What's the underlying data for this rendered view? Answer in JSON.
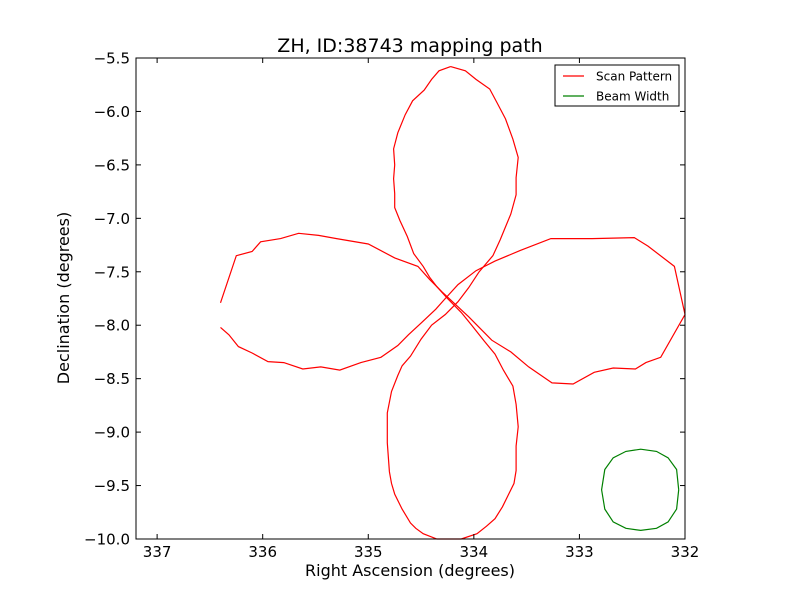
{
  "chart_data": {
    "type": "line",
    "title": "ZH, ID:38743 mapping path",
    "xlabel": "Right Ascension (degrees)",
    "ylabel": "Declination (degrees)",
    "xlim": [
      337.2,
      332.0
    ],
    "ylim": [
      -10.0,
      -5.5
    ],
    "x_ticks": [
      337,
      336,
      335,
      334,
      333,
      332
    ],
    "y_ticks": [
      -10.0,
      -9.5,
      -9.0,
      -8.5,
      -8.0,
      -7.5,
      -7.0,
      -6.5,
      -6.0,
      -5.5
    ],
    "x_tick_labels": [
      "337",
      "336",
      "335",
      "334",
      "333",
      "332"
    ],
    "y_tick_labels": [
      "−10.0",
      "−9.5",
      "−9.0",
      "−8.5",
      "−8.0",
      "−7.5",
      "−7.0",
      "−6.5",
      "−6.0",
      "−5.5"
    ],
    "grid": false,
    "legend_position": "top-right",
    "series": [
      {
        "name": "Scan Pattern",
        "color": "#ff0000",
        "points": [
          [
            336.4,
            -7.79
          ],
          [
            336.25,
            -7.35
          ],
          [
            336.1,
            -7.31
          ],
          [
            336.02,
            -7.22
          ],
          [
            335.83,
            -7.19
          ],
          [
            335.66,
            -7.14
          ],
          [
            335.47,
            -7.16
          ],
          [
            335.3,
            -7.19
          ],
          [
            335.0,
            -7.24
          ],
          [
            334.75,
            -7.37
          ],
          [
            334.53,
            -7.45
          ],
          [
            334.42,
            -7.57
          ],
          [
            334.3,
            -7.69
          ],
          [
            334.18,
            -7.8
          ],
          [
            334.05,
            -7.92
          ],
          [
            333.96,
            -8.01
          ],
          [
            333.83,
            -8.14
          ],
          [
            333.65,
            -8.25
          ],
          [
            333.48,
            -8.39
          ],
          [
            333.26,
            -8.54
          ],
          [
            333.06,
            -8.55
          ],
          [
            332.86,
            -8.44
          ],
          [
            332.68,
            -8.4
          ],
          [
            332.47,
            -8.41
          ],
          [
            332.37,
            -8.35
          ],
          [
            332.23,
            -8.3
          ],
          [
            332.0,
            -7.9
          ],
          [
            332.1,
            -7.45
          ],
          [
            332.35,
            -7.26
          ],
          [
            332.48,
            -7.18
          ],
          [
            332.88,
            -7.19
          ],
          [
            333.27,
            -7.19
          ],
          [
            333.56,
            -7.3
          ],
          [
            333.8,
            -7.4
          ],
          [
            333.98,
            -7.49
          ],
          [
            334.15,
            -7.62
          ],
          [
            334.27,
            -7.75
          ],
          [
            334.36,
            -7.85
          ],
          [
            334.5,
            -7.98
          ],
          [
            334.62,
            -8.09
          ],
          [
            334.72,
            -8.19
          ],
          [
            334.88,
            -8.3
          ],
          [
            335.07,
            -8.35
          ],
          [
            335.27,
            -8.42
          ],
          [
            335.45,
            -8.39
          ],
          [
            335.62,
            -8.41
          ],
          [
            335.8,
            -8.35
          ],
          [
            335.95,
            -8.34
          ],
          [
            336.1,
            -8.26
          ],
          [
            336.23,
            -8.2
          ],
          [
            336.32,
            -8.09
          ],
          [
            336.4,
            -8.02
          ]
        ]
      },
      {
        "name": "",
        "color": "#ff0000",
        "points": [
          [
            334.22,
            -5.58
          ],
          [
            334.08,
            -5.62
          ],
          [
            333.98,
            -5.7
          ],
          [
            333.85,
            -5.79
          ],
          [
            333.78,
            -5.92
          ],
          [
            333.7,
            -6.07
          ],
          [
            333.63,
            -6.26
          ],
          [
            333.58,
            -6.43
          ],
          [
            333.6,
            -6.62
          ],
          [
            333.6,
            -6.78
          ],
          [
            333.65,
            -6.96
          ],
          [
            333.7,
            -7.08
          ],
          [
            333.75,
            -7.2
          ],
          [
            333.82,
            -7.35
          ],
          [
            333.95,
            -7.5
          ],
          [
            334.05,
            -7.65
          ],
          [
            334.15,
            -7.78
          ],
          [
            334.27,
            -7.9
          ],
          [
            334.4,
            -8.0
          ],
          [
            334.5,
            -8.13
          ],
          [
            334.6,
            -8.29
          ],
          [
            334.68,
            -8.38
          ],
          [
            334.72,
            -8.47
          ],
          [
            334.78,
            -8.62
          ],
          [
            334.82,
            -8.82
          ],
          [
            334.82,
            -9.1
          ],
          [
            334.8,
            -9.37
          ],
          [
            334.78,
            -9.48
          ],
          [
            334.75,
            -9.58
          ],
          [
            334.68,
            -9.72
          ],
          [
            334.6,
            -9.85
          ],
          [
            334.55,
            -9.9
          ],
          [
            334.48,
            -9.95
          ],
          [
            334.35,
            -10.0
          ],
          [
            334.12,
            -10.0
          ],
          [
            333.97,
            -9.95
          ],
          [
            333.88,
            -9.88
          ],
          [
            333.8,
            -9.81
          ],
          [
            333.73,
            -9.7
          ],
          [
            333.67,
            -9.58
          ],
          [
            333.62,
            -9.48
          ],
          [
            333.6,
            -9.36
          ],
          [
            333.6,
            -9.13
          ],
          [
            333.58,
            -8.95
          ],
          [
            333.6,
            -8.74
          ],
          [
            333.63,
            -8.57
          ],
          [
            333.72,
            -8.42
          ],
          [
            333.8,
            -8.27
          ],
          [
            333.9,
            -8.15
          ],
          [
            334.02,
            -8.0
          ],
          [
            334.12,
            -7.88
          ],
          [
            334.25,
            -7.75
          ],
          [
            334.35,
            -7.64
          ],
          [
            334.42,
            -7.55
          ],
          [
            334.48,
            -7.45
          ],
          [
            334.57,
            -7.33
          ],
          [
            334.63,
            -7.17
          ],
          [
            334.7,
            -7.02
          ],
          [
            334.75,
            -6.9
          ],
          [
            334.75,
            -6.77
          ],
          [
            334.76,
            -6.63
          ],
          [
            334.75,
            -6.5
          ],
          [
            334.76,
            -6.35
          ],
          [
            334.72,
            -6.2
          ],
          [
            334.65,
            -6.03
          ],
          [
            334.58,
            -5.9
          ],
          [
            334.47,
            -5.8
          ],
          [
            334.4,
            -5.7
          ],
          [
            334.33,
            -5.62
          ],
          [
            334.22,
            -5.58
          ]
        ]
      },
      {
        "name": "Beam Width",
        "color": "#008000",
        "points": [
          [
            332.06,
            -9.54
          ],
          [
            332.08,
            -9.35
          ],
          [
            332.16,
            -9.24
          ],
          [
            332.27,
            -9.18
          ],
          [
            332.42,
            -9.16
          ],
          [
            332.56,
            -9.18
          ],
          [
            332.68,
            -9.24
          ],
          [
            332.76,
            -9.35
          ],
          [
            332.79,
            -9.54
          ],
          [
            332.76,
            -9.72
          ],
          [
            332.68,
            -9.84
          ],
          [
            332.56,
            -9.9
          ],
          [
            332.42,
            -9.92
          ],
          [
            332.27,
            -9.9
          ],
          [
            332.16,
            -9.84
          ],
          [
            332.08,
            -9.72
          ],
          [
            332.06,
            -9.54
          ]
        ]
      }
    ]
  }
}
